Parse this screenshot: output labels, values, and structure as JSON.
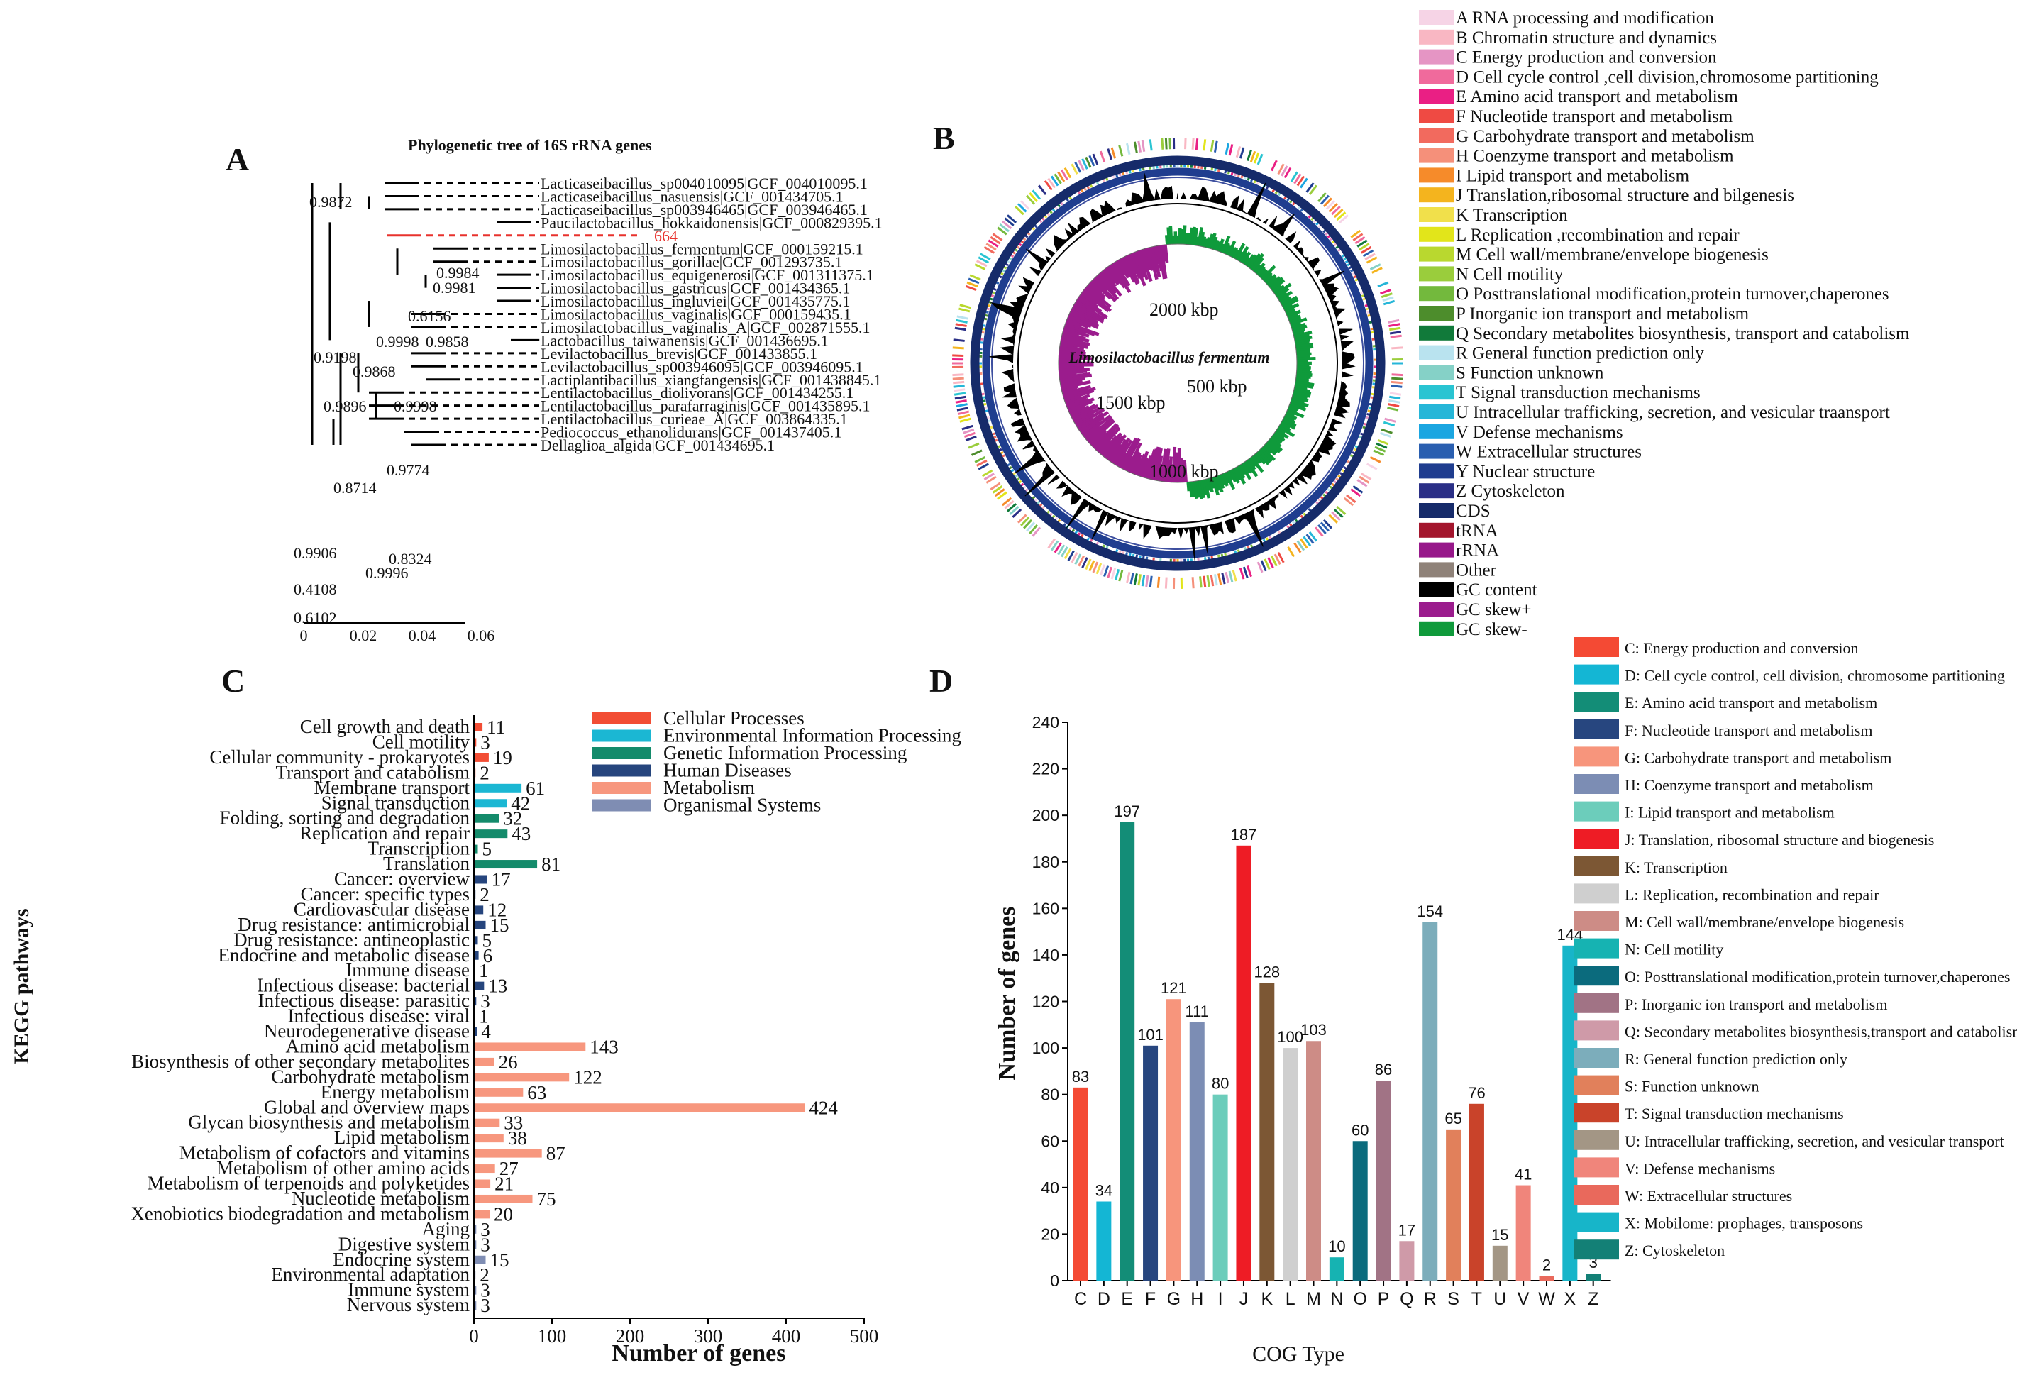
{
  "panels": {
    "A": "A",
    "B": "B",
    "C": "C",
    "D": "D"
  },
  "tree": {
    "title": "Phylogenetic tree of 16S rRNA genes",
    "leaves": [
      "Lacticaseibacillus_sp004010095|GCF_004010095.1",
      "Lacticaseibacillus_nasuensis|GCF_001434705.1",
      "Lacticaseibacillus_sp003946465|GCF_003946465.1",
      "Paucilactobacillus_hokkaidonensis|GCF_000829395.1",
      "664",
      "Limosilactobacillus_fermentum|GCF_000159215.1",
      "Limosilactobacillus_gorillae|GCF_001293735.1",
      "Limosilactobacillus_equigenerosi|GCF_001311375.1",
      "Limosilactobacillus_gastricus|GCF_001434365.1",
      "Limosilactobacillus_ingluviei|GCF_001435775.1",
      "Limosilactobacillus_vaginalis|GCF_000159435.1",
      "Limosilactobacillus_vaginalis_A|GCF_002871555.1",
      "Lactobacillus_taiwanensis|GCF_001436695.1",
      "Levilactobacillus_brevis|GCF_001433855.1",
      "Levilactobacillus_sp003946095|GCF_003946095.1",
      "Lactiplantibacillus_xiangfangensis|GCF_001438845.1",
      "Lentilactobacillus_diolivorans|GCF_001434255.1",
      "Lentilactobacillus_parafarraginis|GCF_001435895.1",
      "Lentilactobacillus_curieae_A|GCF_003864335.1",
      "Pediococcus_ethanolidurans|GCF_001437405.1",
      "Dellaglioa_algida|GCF_001434695.1"
    ],
    "bootstrap": [
      "0.9872",
      "0.9984",
      "0.9981",
      "0.6156",
      "0.9998",
      "0.9858",
      "0.9198",
      "0.9868",
      "0.9896",
      "0.9998",
      "0.9774",
      "0.8714",
      "0.8324",
      "0.9906",
      "0.9996",
      "0.4108",
      "0.6102"
    ],
    "scale_ticks": [
      "0",
      "0.02",
      "0.04",
      "0.06"
    ],
    "highlight_color": "#e8322d"
  },
  "genome_map": {
    "organism": "Limosilactobacillus fermentum",
    "positions": [
      "2000 kbp",
      "500 kbp",
      "1500 kbp",
      "1000 kbp"
    ],
    "legend": [
      {
        "label": "A RNA processing and modification",
        "color": "#f6d4e6"
      },
      {
        "label": "B Chromatin structure and dynamics",
        "color": "#f9b7c3"
      },
      {
        "label": "C Energy production and conversion",
        "color": "#e595c4"
      },
      {
        "label": "D Cell cycle control ,cell division,chromosome partitioning",
        "color": "#f06a9c"
      },
      {
        "label": "E Amino acid transport and metabolism",
        "color": "#ea1f84"
      },
      {
        "label": "F Nucleotide transport and metabolism",
        "color": "#ef4a43"
      },
      {
        "label": "G Carbohydrate transport and metabolism",
        "color": "#f26a5e"
      },
      {
        "label": "H Coenzyme transport and metabolism",
        "color": "#f5907a"
      },
      {
        "label": "I Lipid transport and metabolism",
        "color": "#f68b2a"
      },
      {
        "label": "J Translation,ribosomal structure and bilgenesis",
        "color": "#f4b41e"
      },
      {
        "label": "K Transcription",
        "color": "#f1e04b"
      },
      {
        "label": "L Replication ,recombination and repair",
        "color": "#e2e51a"
      },
      {
        "label": "M Cell wall/membrane/envelope biogenesis",
        "color": "#b9d82f"
      },
      {
        "label": "N Cell motility",
        "color": "#9acd3c"
      },
      {
        "label": "O Posttranslational modification,protein turnover,chaperones",
        "color": "#73b93d"
      },
      {
        "label": "P Inorganic ion transport and metabolism",
        "color": "#4d8d2c"
      },
      {
        "label": "Q Secondary metabolites biosynthesis, transport and catabolism",
        "color": "#117a3a"
      },
      {
        "label": "R General function prediction only",
        "color": "#b9e3ef"
      },
      {
        "label": "S Function unknown",
        "color": "#85d1c7"
      },
      {
        "label": "T Signal transduction mechanisms",
        "color": "#29c4d2"
      },
      {
        "label": "U Intracellular trafficking, secretion, and vesicular traansport",
        "color": "#26b6d8"
      },
      {
        "label": "V Defense mechanisms",
        "color": "#1ba6e1"
      },
      {
        "label": "W Extracellular structures",
        "color": "#2a5fb0"
      },
      {
        "label": "Y Nuclear structure",
        "color": "#1f3d8f"
      },
      {
        "label": "Z Cytoskeleton",
        "color": "#2a2f86"
      },
      {
        "label": "CDS",
        "color": "#162b6a"
      },
      {
        "label": "tRNA",
        "color": "#a3162d"
      },
      {
        "label": "rRNA",
        "color": "#97188a"
      },
      {
        "label": "Other",
        "color": "#8f8279"
      },
      {
        "label": "GC content",
        "color": "#000000"
      },
      {
        "label": "GC skew+",
        "color": "#9b1c8d"
      },
      {
        "label": "GC skew-",
        "color": "#0f9a3b"
      }
    ]
  },
  "chart_data": [
    {
      "type": "bar",
      "orientation": "horizontal",
      "ylabel": "KEGG pathways",
      "xlabel": "Number of genes",
      "xlim": [
        0,
        500
      ],
      "xticks": [
        0,
        100,
        200,
        300,
        400,
        500
      ],
      "legend": [
        {
          "name": "Cellular Processes",
          "color": "#f24d34"
        },
        {
          "name": "Environmental Information Processing",
          "color": "#1bb7d3"
        },
        {
          "name": "Genetic Information Processing",
          "color": "#148b6b"
        },
        {
          "name": "Human Diseases",
          "color": "#26457d"
        },
        {
          "name": "Metabolism",
          "color": "#f7977e"
        },
        {
          "name": "Organismal Systems",
          "color": "#7f8db3"
        }
      ],
      "categories": [
        "Cell growth and death",
        "Cell motility",
        "Cellular community - prokaryotes",
        "Transport and catabolism",
        "Membrane transport",
        "Signal transduction",
        "Folding, sorting and degradation",
        "Replication and repair",
        "Transcription",
        "Translation",
        "Cancer: overview",
        "Cancer: specific types",
        "Cardiovascular disease",
        "Drug resistance: antimicrobial",
        "Drug resistance: antineoplastic",
        "Endocrine and metabolic disease",
        "Immune disease",
        "Infectious disease: bacterial",
        "Infectious disease: parasitic",
        "Infectious disease: viral",
        "Neurodegenerative disease",
        "Amino acid metabolism",
        "Biosynthesis of other secondary metabolites",
        "Carbohydrate metabolism",
        "Energy metabolism",
        "Global and overview maps",
        "Glycan biosynthesis and metabolism",
        "Lipid metabolism",
        "Metabolism of cofactors and vitamins",
        "Metabolism of other amino acids",
        "Metabolism of terpenoids and polyketides",
        "Nucleotide metabolism",
        "Xenobiotics biodegradation and metabolism",
        "Aging",
        "Digestive system",
        "Endocrine system",
        "Environmental adaptation",
        "Immune system",
        "Nervous system"
      ],
      "values": [
        11,
        3,
        19,
        2,
        61,
        42,
        32,
        43,
        5,
        81,
        17,
        2,
        12,
        15,
        5,
        6,
        1,
        13,
        3,
        1,
        4,
        143,
        26,
        122,
        63,
        424,
        33,
        38,
        87,
        27,
        21,
        75,
        20,
        3,
        3,
        15,
        2,
        3,
        3
      ],
      "groups": [
        0,
        0,
        0,
        0,
        1,
        1,
        2,
        2,
        2,
        2,
        3,
        3,
        3,
        3,
        3,
        3,
        3,
        3,
        3,
        3,
        3,
        4,
        4,
        4,
        4,
        4,
        4,
        4,
        4,
        4,
        4,
        4,
        4,
        5,
        5,
        5,
        5,
        5,
        5
      ]
    },
    {
      "type": "bar",
      "orientation": "vertical",
      "xlabel": "COG Type",
      "ylabel": "Number of genes",
      "ylim": [
        0,
        240
      ],
      "yticks": [
        0,
        20,
        40,
        60,
        80,
        100,
        120,
        140,
        160,
        180,
        200,
        220,
        240
      ],
      "categories": [
        "C",
        "D",
        "E",
        "F",
        "G",
        "H",
        "I",
        "J",
        "K",
        "L",
        "M",
        "N",
        "O",
        "P",
        "Q",
        "R",
        "S",
        "T",
        "U",
        "V",
        "W",
        "X",
        "Z"
      ],
      "values": [
        83,
        34,
        197,
        101,
        121,
        111,
        80,
        187,
        128,
        100,
        103,
        10,
        60,
        86,
        17,
        154,
        65,
        76,
        15,
        41,
        2,
        144,
        3
      ],
      "colors": [
        "#f44a34",
        "#14b6d4",
        "#138d77",
        "#27467f",
        "#f7957c",
        "#7c8db4",
        "#6ccdbb",
        "#ee1c25",
        "#7c5734",
        "#cfcfcf",
        "#cd8c86",
        "#16b3b2",
        "#0b6b7d",
        "#a17385",
        "#cf9aa8",
        "#7cadbb",
        "#e1805b",
        "#c9432a",
        "#a39685",
        "#f0857b",
        "#e9695c",
        "#17b5c9",
        "#138076"
      ],
      "legend": [
        "C: Energy production and conversion",
        "D: Cell cycle control, cell division, chromosome partitioning",
        "E: Amino acid transport and metabolism",
        "F: Nucleotide transport and metabolism",
        "G: Carbohydrate transport and metabolism",
        "H: Coenzyme transport and metabolism",
        "I: Lipid transport and metabolism",
        "J: Translation, ribosomal structure and biogenesis",
        "K: Transcription",
        "L: Replication, recombination and repair",
        "M: Cell wall/membrane/envelope biogenesis",
        "N: Cell motility",
        "O: Posttranslational modification,protein turnover,chaperones",
        "P: Inorganic ion transport and metabolism",
        "Q: Secondary metabolites biosynthesis,transport and catabolism",
        "R: General function prediction only",
        "S: Function unknown",
        "T: Signal transduction mechanisms",
        "U: Intracellular trafficking, secretion, and vesicular transport",
        "V: Defense mechanisms",
        "W: Extracellular structures",
        "X: Mobilome: prophages, transposons",
        "Z: Cytoskeleton"
      ]
    }
  ]
}
